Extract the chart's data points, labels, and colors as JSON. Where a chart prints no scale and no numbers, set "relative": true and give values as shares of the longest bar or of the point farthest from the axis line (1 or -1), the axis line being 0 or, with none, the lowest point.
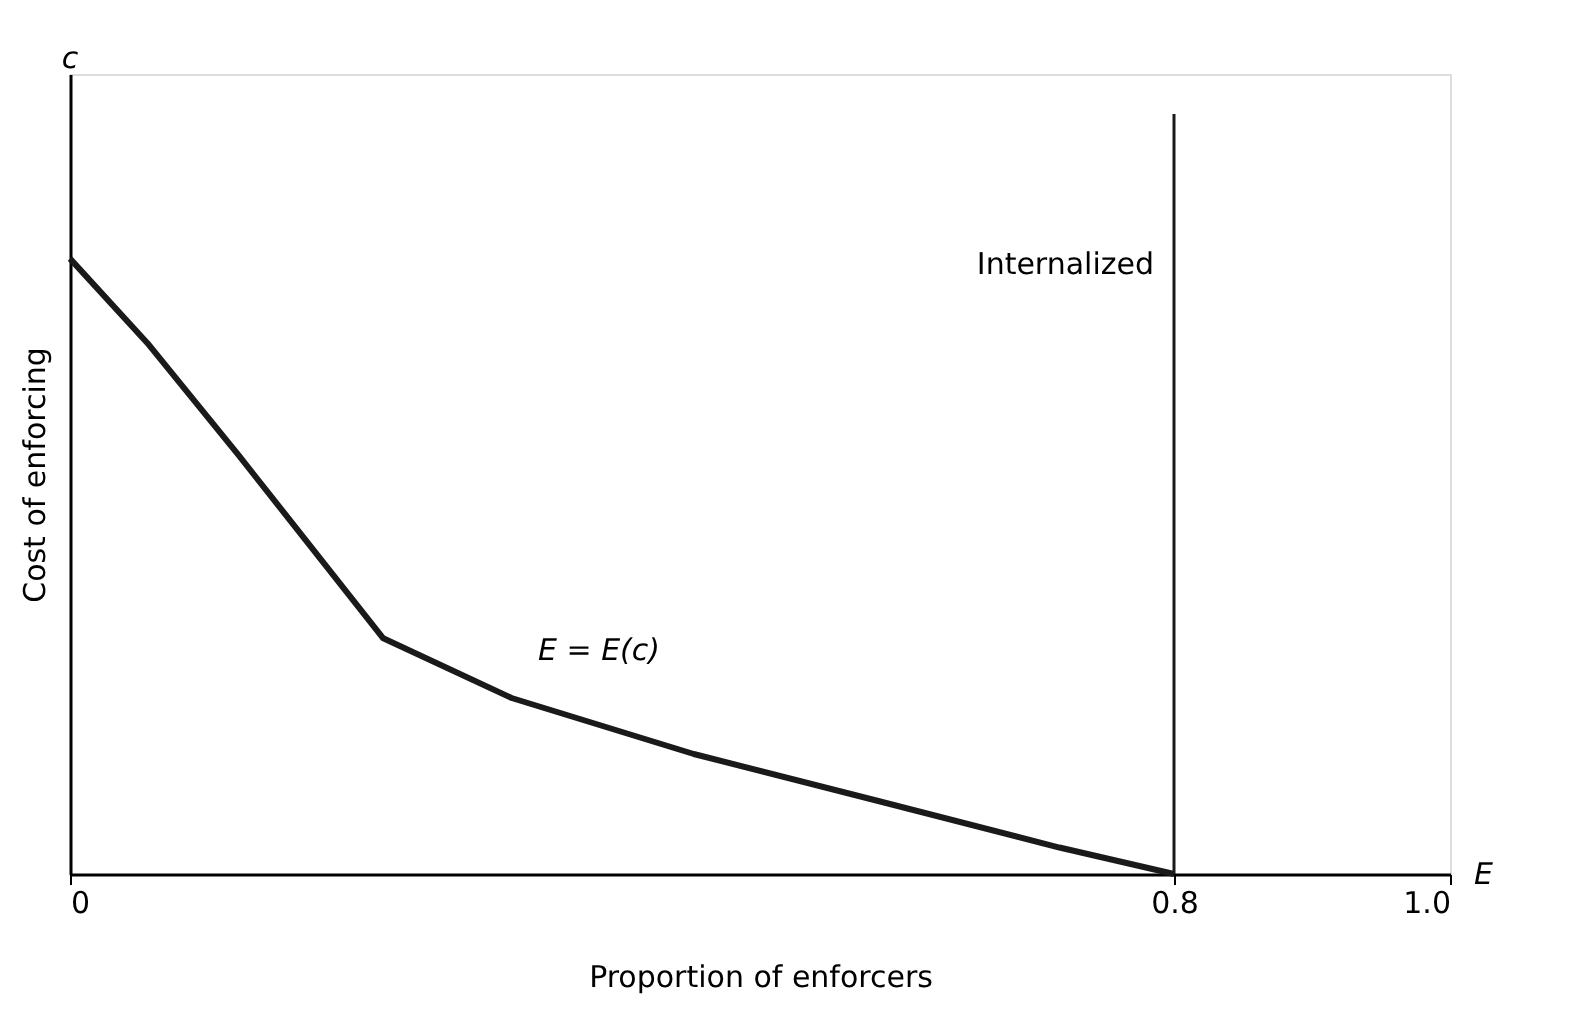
{
  "chart_data": {
    "type": "line",
    "relative": true,
    "x": [
      0,
      0.056,
      0.122,
      0.227,
      0.32,
      0.452,
      0.585,
      0.717,
      0.8
    ],
    "series": [
      {
        "color": "#1a1a1a",
        "values": [
          1,
          0.863,
          0.681,
          0.383,
          0.286,
          0.195,
          0.119,
          0.043,
          0
        ]
      }
    ],
    "xlim": [
      0,
      1.0
    ],
    "xticks": [
      0,
      0.8,
      {
        "value": 1.0,
        "label": "1.0"
      }
    ],
    "xlabel": "Proportion of enforcers",
    "ylabel": "Cost of enforcing",
    "ref_lines": [
      {
        "axis": "x",
        "value": 0.8,
        "label": "Internalized",
        "color": "#1a1a1a"
      }
    ],
    "annotations": [
      "c",
      "E",
      "E = E(c)"
    ],
    "grid": false,
    "marker": "none",
    "line_style": "solid"
  }
}
